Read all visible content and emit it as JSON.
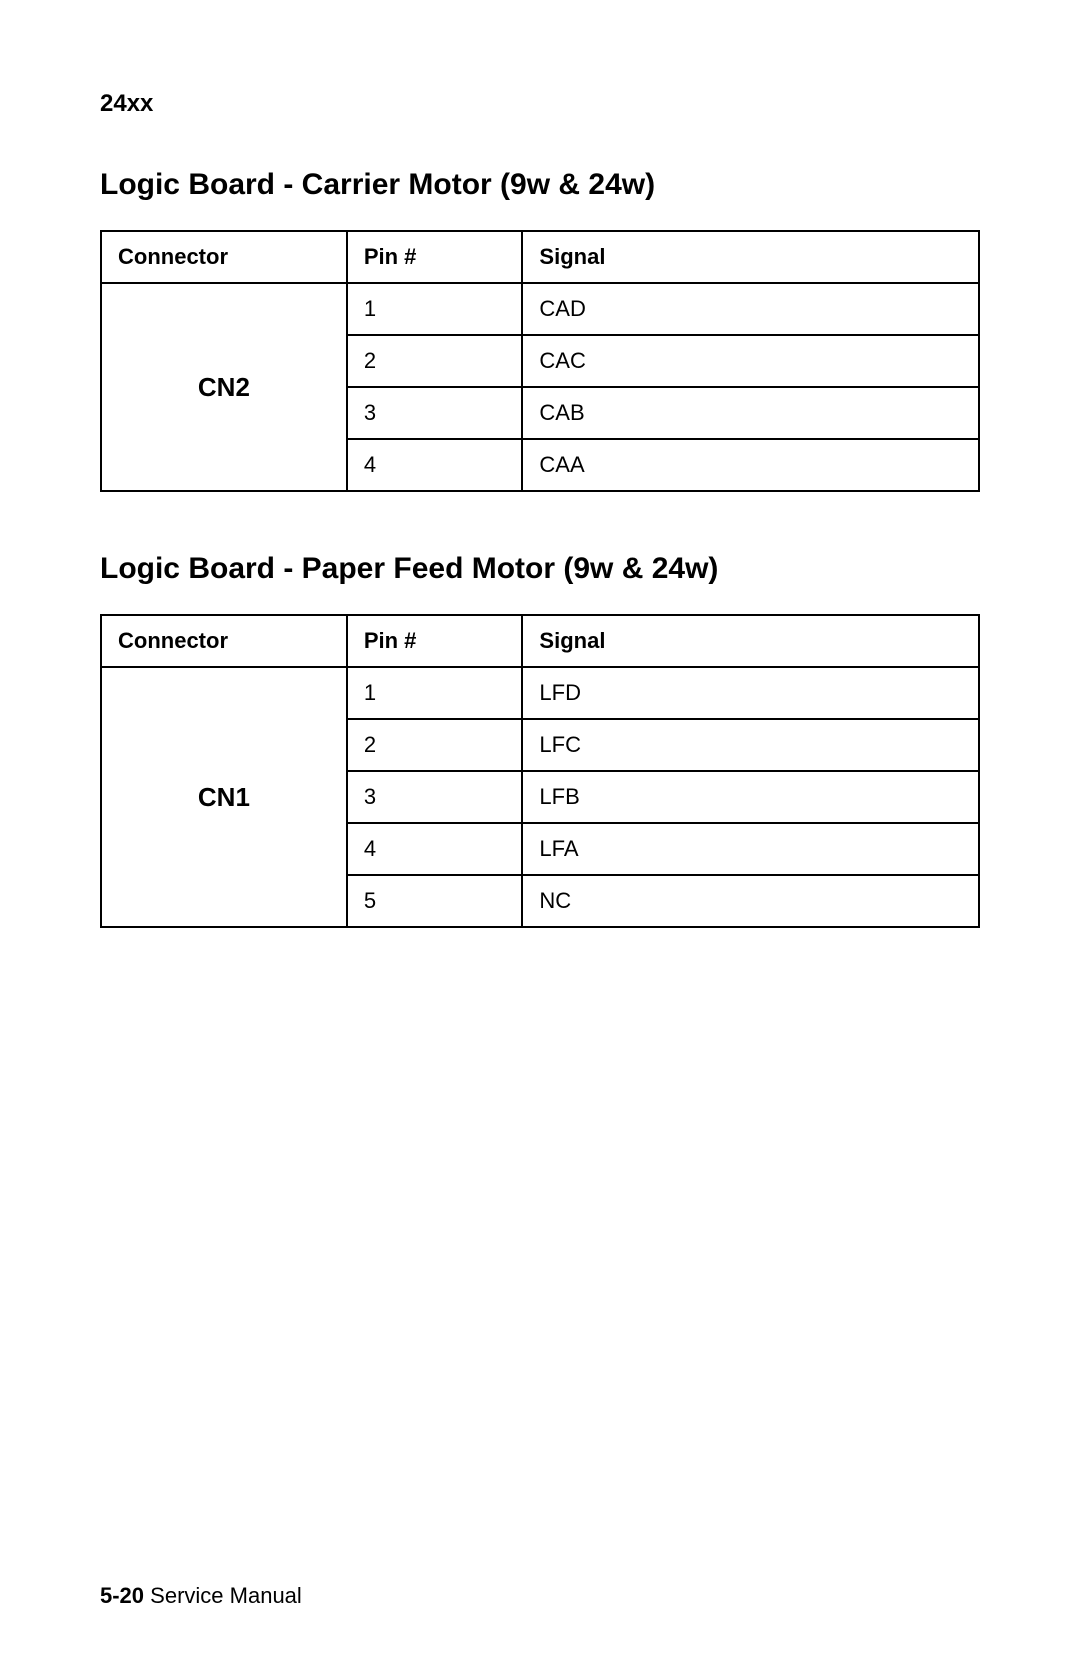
{
  "page": {
    "header_label": "24xx",
    "footer_page": "5-20",
    "footer_text": "Service Manual"
  },
  "sections": {
    "carrier": {
      "title": "Logic Board - Carrier Motor (9w & 24w)",
      "table": {
        "columns": [
          "Connector",
          "Pin #",
          "Signal"
        ],
        "connector": "CN2",
        "rows": [
          {
            "pin": "1",
            "signal": "CAD"
          },
          {
            "pin": "2",
            "signal": "CAC"
          },
          {
            "pin": "3",
            "signal": "CAB"
          },
          {
            "pin": "4",
            "signal": "CAA"
          }
        ]
      }
    },
    "paperfeed": {
      "title": "Logic Board - Paper Feed Motor (9w & 24w)",
      "table": {
        "columns": [
          "Connector",
          "Pin #",
          "Signal"
        ],
        "connector": "CN1",
        "rows": [
          {
            "pin": "1",
            "signal": "LFD"
          },
          {
            "pin": "2",
            "signal": "LFC"
          },
          {
            "pin": "3",
            "signal": "LFB"
          },
          {
            "pin": "4",
            "signal": "LFA"
          },
          {
            "pin": "5",
            "signal": "NC"
          }
        ]
      }
    }
  },
  "style": {
    "background_color": "#ffffff",
    "text_color": "#000000",
    "border_color": "#000000",
    "header_fontsize": 24,
    "title_fontsize": 30,
    "cell_fontsize": 22,
    "connector_fontsize": 26,
    "footer_fontsize": 22,
    "col_widths_pct": [
      28,
      20,
      52
    ]
  }
}
